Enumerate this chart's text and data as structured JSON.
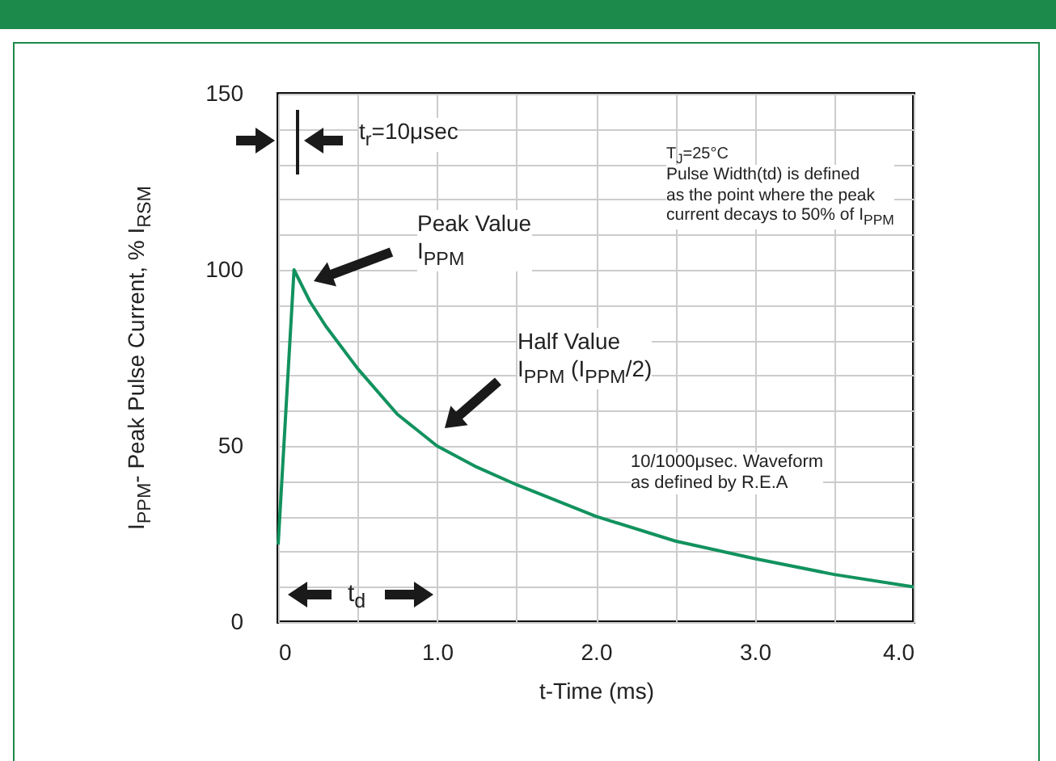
{
  "chart_data": {
    "type": "line",
    "xlabel": "t-Time (ms)",
    "ylabel": "I$_{PPM}$- Peak Pulse Current, % I$_{RSM}$",
    "x": [
      0,
      0.1,
      0.2,
      0.3,
      0.5,
      0.75,
      1.0,
      1.25,
      1.5,
      2.0,
      2.5,
      3.0,
      3.5,
      4.0
    ],
    "series": [
      {
        "color": "#12925e",
        "values": [
          22,
          100,
          91,
          84,
          72,
          59,
          50,
          44,
          39,
          30,
          23,
          18,
          13.5,
          10
        ]
      }
    ],
    "xlim": [
      0,
      4
    ],
    "ylim": [
      0,
      150
    ],
    "xticks": [
      0,
      {
        "value": 0.5,
        "label": null
      },
      {
        "value": 1,
        "label": "1.0"
      },
      {
        "value": 1.5,
        "label": null
      },
      {
        "value": 2,
        "label": "2.0"
      },
      {
        "value": 2.5,
        "label": null
      },
      {
        "value": 3,
        "label": "3.0"
      },
      {
        "value": 3.5,
        "label": null
      },
      {
        "value": 4,
        "label": "4.0"
      }
    ],
    "yticks": [
      0,
      {
        "value": 10,
        "label": null
      },
      {
        "value": 20,
        "label": null
      },
      {
        "value": 30,
        "label": null
      },
      {
        "value": 40,
        "label": null
      },
      50,
      {
        "value": 60,
        "label": null
      },
      {
        "value": 70,
        "label": null
      },
      {
        "value": 80,
        "label": null
      },
      {
        "value": 90,
        "label": null
      },
      100,
      {
        "value": 110,
        "label": null
      },
      {
        "value": 120,
        "label": null
      },
      {
        "value": 130,
        "label": null
      },
      {
        "value": 140,
        "label": null
      },
      150
    ],
    "grid": true,
    "legend": false,
    "marker": "none",
    "line_style": "solid",
    "annotations": [
      "t$_{r}$=10μsec",
      "T$_{J}$=25°C",
      "Pulse Width(td) is defined as the point where the peak current decays to 50% of I$_{PPM}$",
      "Peak Value I$_{PPM}$",
      "Half Value I$_{PPM}$ (I$_{PPM}$/2)",
      "10/1000μsec. Waveform as defined by R.E.A",
      "t$_{d}$"
    ]
  }
}
